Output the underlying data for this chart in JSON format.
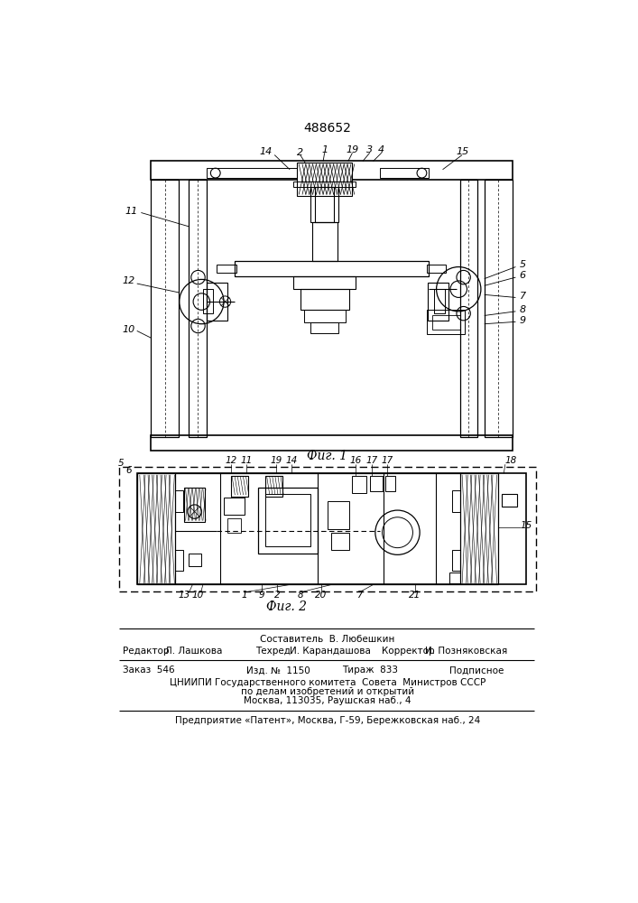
{
  "patent_number": "488652",
  "fig1_caption": "Фиг. 1",
  "fig2_caption": "Фиг. 2",
  "footer_line1": "Составитель  В. Любешкин",
  "footer_ed_label": "Редактор",
  "footer_ed_val": "Л. Лашкова",
  "footer_tech_label": "Техред",
  "footer_tech_val": "И. Карандашова",
  "footer_corr_label": "Корректор",
  "footer_corr_val": "И. Позняковская",
  "footer_zak_label": "Заказ",
  "footer_zak_val": "546",
  "footer_izd_label": "Изд. №",
  "footer_izd_val": "1150",
  "footer_tirazh_label": "Тираж",
  "footer_tirazh_val": "833",
  "footer_podp": "Подписное",
  "footer_org1": "ЦНИИПИ Государственного комитета  Совета  Министров СССР",
  "footer_org2": "по делам изобретений и открытий",
  "footer_org3": "Москва, 113035, Раушская наб., 4",
  "footer_org4": "Предприятие «Патент», Москва, Г-59, Бережковская наб., 24",
  "bg_color": "#ffffff"
}
